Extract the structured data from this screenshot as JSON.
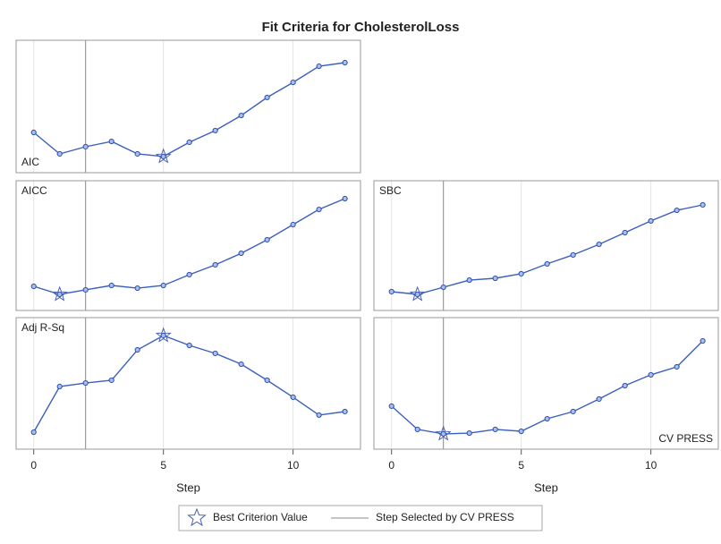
{
  "title": "Fit Criteria for CholesterolLoss",
  "selected_step": 2,
  "legend": [
    "Best Criterion Value",
    "Step Selected by CV PRESS"
  ],
  "chart_data": [
    {
      "type": "line",
      "label": "AIC",
      "x": [
        0,
        1,
        2,
        3,
        4,
        5,
        6,
        7,
        8,
        9,
        10,
        11,
        12
      ],
      "values": [
        30.4,
        14.2,
        19.6,
        23.6,
        14.2,
        12.2,
        23.0,
        31.8,
        43.2,
        56.8,
        68.2,
        80.4,
        83.1
      ],
      "best_step": 5,
      "xlim": [
        -0.68,
        12.6
      ],
      "ylim": [
        0,
        100
      ],
      "xticks": [
        0,
        5,
        10
      ],
      "grid": true,
      "color": "#3b5fc0"
    },
    {
      "type": "line",
      "label": "AICC",
      "x": [
        0,
        1,
        2,
        3,
        4,
        5,
        6,
        7,
        8,
        9,
        10,
        11,
        12
      ],
      "values": [
        18.6,
        12.4,
        15.9,
        19.3,
        17.2,
        19.3,
        27.6,
        35.2,
        44.1,
        54.5,
        66.2,
        77.9,
        86.2
      ],
      "best_step": 1,
      "xlim": [
        -0.68,
        12.6
      ],
      "ylim": [
        0,
        100
      ],
      "xticks": [
        0,
        5,
        10
      ],
      "grid": true,
      "color": "#3b5fc0"
    },
    {
      "type": "line",
      "label": "SBC",
      "x": [
        0,
        1,
        2,
        3,
        4,
        5,
        6,
        7,
        8,
        9,
        10,
        11,
        12
      ],
      "values": [
        14.5,
        12.4,
        17.9,
        23.4,
        24.8,
        28.3,
        35.9,
        42.8,
        51.0,
        60.0,
        69.0,
        77.2,
        81.4
      ],
      "best_step": 1,
      "xlim": [
        -0.68,
        12.6
      ],
      "ylim": [
        0,
        100
      ],
      "xticks": [
        0,
        5,
        10
      ],
      "grid": true,
      "color": "#3b5fc0"
    },
    {
      "type": "line",
      "label": "Adj R-Sq",
      "x": [
        0,
        1,
        2,
        3,
        4,
        5,
        6,
        7,
        8,
        9,
        10,
        11,
        12
      ],
      "values": [
        12.9,
        47.6,
        50.3,
        52.4,
        75.5,
        86.4,
        78.9,
        72.8,
        64.6,
        52.4,
        39.5,
        25.9,
        28.6
      ],
      "best_step": 5,
      "xlim": [
        -0.68,
        12.6
      ],
      "ylim": [
        0,
        100
      ],
      "xticks": [
        0,
        5,
        10
      ],
      "grid": true,
      "color": "#3b5fc0",
      "xlabel": "Step"
    },
    {
      "type": "line",
      "label": "CV PRESS",
      "x": [
        0,
        1,
        2,
        3,
        4,
        5,
        6,
        7,
        8,
        9,
        10,
        11,
        12
      ],
      "values": [
        32.7,
        15.0,
        11.6,
        12.2,
        15.0,
        13.6,
        23.1,
        28.6,
        38.1,
        48.3,
        56.5,
        62.6,
        82.3
      ],
      "best_step": 2,
      "xlim": [
        -0.68,
        12.6
      ],
      "ylim": [
        0,
        100
      ],
      "xticks": [
        0,
        5,
        10
      ],
      "grid": true,
      "color": "#3b5fc0",
      "xlabel": "Step"
    }
  ]
}
